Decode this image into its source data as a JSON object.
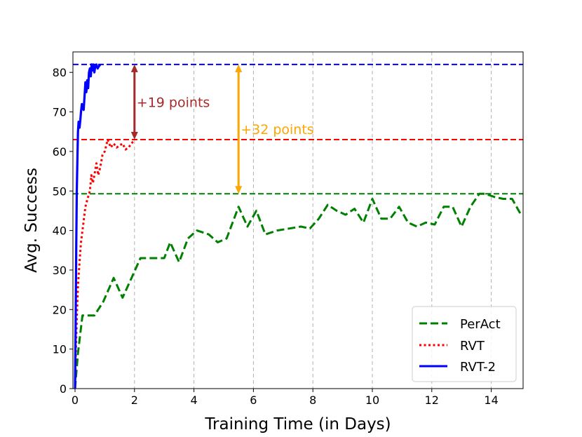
{
  "chart_data": {
    "type": "line",
    "title": "",
    "xlabel": "Training Time (in Days)",
    "ylabel": "Avg. Success",
    "xlim": [
      0,
      15
    ],
    "ylim": [
      0,
      85
    ],
    "xticks": [
      0,
      2,
      4,
      6,
      8,
      10,
      12,
      14
    ],
    "yticks": [
      0,
      10,
      20,
      30,
      40,
      50,
      60,
      70,
      80
    ],
    "grid": "vertical dashed",
    "legend_position": "bottom-right",
    "series": [
      {
        "name": "PerAct",
        "color": "#008000",
        "style": "dashed",
        "x": [
          0,
          0.1,
          0.25,
          0.45,
          0.65,
          0.95,
          1.3,
          1.6,
          1.9,
          2.2,
          2.6,
          3.0,
          3.2,
          3.5,
          3.8,
          4.1,
          4.5,
          4.8,
          5.1,
          5.5,
          5.8,
          6.1,
          6.4,
          6.8,
          7.2,
          7.6,
          7.9,
          8.2,
          8.5,
          8.8,
          9.1,
          9.4,
          9.7,
          10.0,
          10.3,
          10.6,
          10.9,
          11.2,
          11.5,
          11.8,
          12.1,
          12.4,
          12.7,
          13.0,
          13.3,
          13.6,
          13.8,
          14.1,
          14.4,
          14.7,
          15.0
        ],
        "y": [
          0,
          9,
          18.5,
          18.5,
          18.5,
          22,
          28,
          23,
          28,
          33,
          33,
          33,
          37,
          32,
          38,
          40,
          39,
          37,
          38,
          46,
          41,
          45,
          39,
          40,
          40.5,
          41,
          40.5,
          43,
          46.5,
          45,
          44,
          45.5,
          42,
          48,
          43,
          43,
          46,
          42,
          41,
          42,
          41.5,
          46,
          46,
          41,
          46,
          49.3,
          49.3,
          48.5,
          48,
          48,
          44
        ]
      },
      {
        "name": "RVT",
        "color": "#ff0000",
        "style": "dotted",
        "x": [
          0,
          0.03,
          0.06,
          0.1,
          0.15,
          0.2,
          0.25,
          0.3,
          0.35,
          0.42,
          0.5,
          0.55,
          0.6,
          0.65,
          0.72,
          0.78,
          0.85,
          0.92,
          1.0,
          1.1,
          1.2,
          1.3,
          1.4,
          1.5,
          1.6,
          1.7,
          1.8,
          1.9,
          2.0
        ],
        "y": [
          0,
          10,
          18,
          26,
          32,
          37,
          40,
          43,
          46,
          48,
          50,
          54,
          52,
          54,
          57,
          54,
          56,
          59,
          60,
          63,
          61,
          62,
          61,
          61.5,
          62,
          60.5,
          61,
          62,
          63
        ]
      },
      {
        "name": "RVT-2",
        "color": "#0000ff",
        "style": "solid",
        "x": [
          0,
          0.02,
          0.04,
          0.06,
          0.08,
          0.1,
          0.12,
          0.15,
          0.18,
          0.2,
          0.23,
          0.26,
          0.29,
          0.32,
          0.35,
          0.38,
          0.41,
          0.44,
          0.47,
          0.5,
          0.53,
          0.56,
          0.59,
          0.62,
          0.65,
          0.68,
          0.72,
          0.76,
          0.8,
          0.85
        ],
        "y": [
          0,
          15,
          35,
          50,
          58,
          65,
          67.5,
          66,
          68,
          70,
          72,
          71,
          70.5,
          74,
          77.5,
          75,
          78,
          76,
          80,
          81,
          79,
          82,
          80.5,
          82,
          80,
          81.5,
          82,
          81,
          81.5,
          82
        ]
      }
    ],
    "reference_lines": [
      {
        "y": 82,
        "color": "#0000ff",
        "style": "dashed"
      },
      {
        "y": 63,
        "color": "#ff0000",
        "style": "dashed"
      },
      {
        "y": 49.3,
        "color": "#008000",
        "style": "dashed"
      }
    ],
    "annotations": [
      {
        "text": "+19 points",
        "x": 2,
        "y_from": 82,
        "y_to": 63,
        "color": "#a52a2a"
      },
      {
        "text": "+32 points",
        "x": 5.5,
        "y_from": 82,
        "y_to": 49.3,
        "color": "#ffa500"
      }
    ]
  }
}
